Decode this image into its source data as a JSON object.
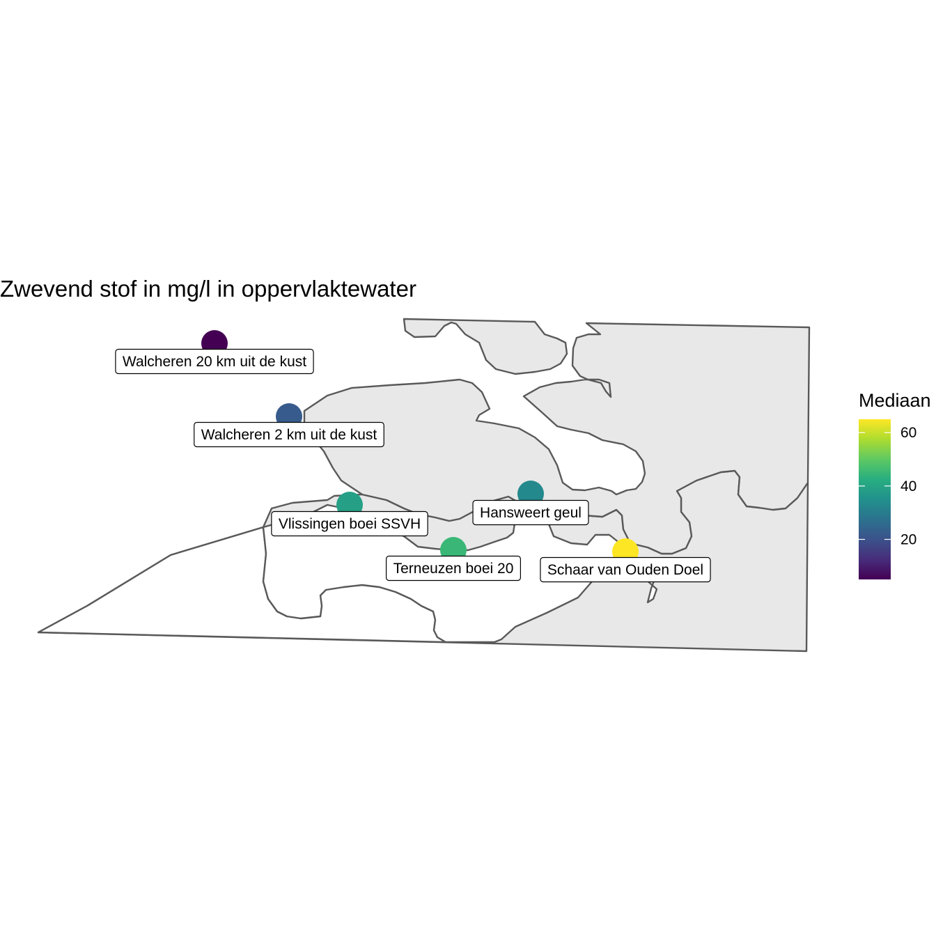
{
  "title": "Zwevend stof in mg/l in oppervlaktewater",
  "legend": {
    "title": "Mediaan",
    "min": 5,
    "max": 65,
    "ticks": [
      {
        "value": 20,
        "label": "20"
      },
      {
        "value": 40,
        "label": "40"
      },
      {
        "value": 60,
        "label": "60"
      }
    ],
    "colormap": "viridis"
  },
  "stations": [
    {
      "name": "Walcheren 20 km uit de kust",
      "mediaan": 5
    },
    {
      "name": "Walcheren 2 km uit de kust",
      "mediaan": 22
    },
    {
      "name": "Vlissingen boei SSVH",
      "mediaan": 39
    },
    {
      "name": "Hansweert geul",
      "mediaan": 33
    },
    {
      "name": "Terneuzen boei 20",
      "mediaan": 45
    },
    {
      "name": "Schaar van Ouden Doel",
      "mediaan": 65
    }
  ]
}
